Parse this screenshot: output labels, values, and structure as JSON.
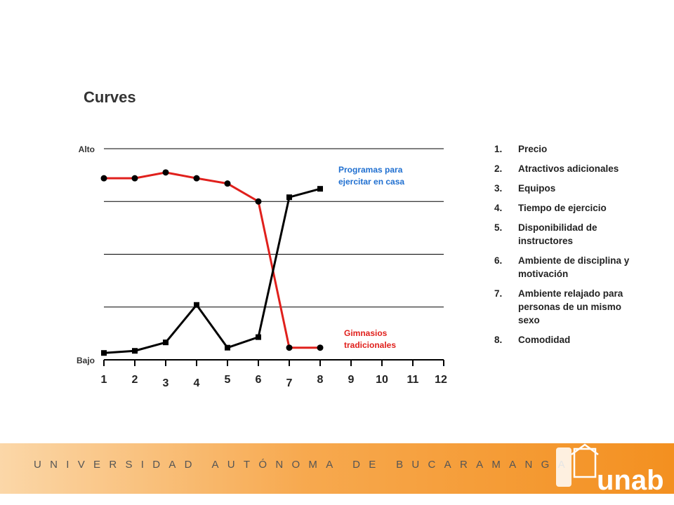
{
  "chart_data": {
    "type": "line",
    "title": "Curves",
    "categories": [
      "1",
      "2",
      "3",
      "4",
      "5",
      "6",
      "7",
      "8",
      "9",
      "10",
      "11",
      "12"
    ],
    "ylim": [
      0,
      4
    ],
    "yticks": [
      {
        "value": 0,
        "label": "Bajo"
      },
      {
        "value": 4,
        "label": "Alto"
      }
    ],
    "gridlines": [
      1,
      2,
      3,
      4
    ],
    "series": [
      {
        "name": "Gimnasios tradicionales",
        "color": "#e0201c",
        "label_color": "#e0201c",
        "marker": "circle",
        "values": [
          3.44,
          3.44,
          3.55,
          3.44,
          3.34,
          3.0,
          0.23,
          0.23,
          null,
          null,
          null,
          null
        ]
      },
      {
        "name": "Programas para ejercitar en casa",
        "color": "#000000",
        "label_color": "#1f6fd0",
        "marker": "square",
        "values": [
          0.13,
          0.17,
          0.33,
          1.04,
          0.23,
          0.43,
          3.08,
          3.24,
          null,
          null,
          null,
          null
        ]
      }
    ]
  },
  "factors": [
    {
      "num": "1.",
      "text": "Precio"
    },
    {
      "num": "2.",
      "text": "Atractivos adicionales"
    },
    {
      "num": "3.",
      "text": "Equipos"
    },
    {
      "num": "4.",
      "text": "Tiempo de ejercicio"
    },
    {
      "num": "5.",
      "text": "Disponibilidad de instructores"
    },
    {
      "num": "6.",
      "text": "Ambiente de disciplina y motivación"
    },
    {
      "num": "7.",
      "text": "Ambiente relajado para personas de un mismo sexo"
    },
    {
      "num": "8.",
      "text": "Comodidad"
    }
  ],
  "footer": {
    "university": "UNIVERSIDAD AUTÓNOMA DE BUCARAMANGA",
    "logo": "unab"
  }
}
